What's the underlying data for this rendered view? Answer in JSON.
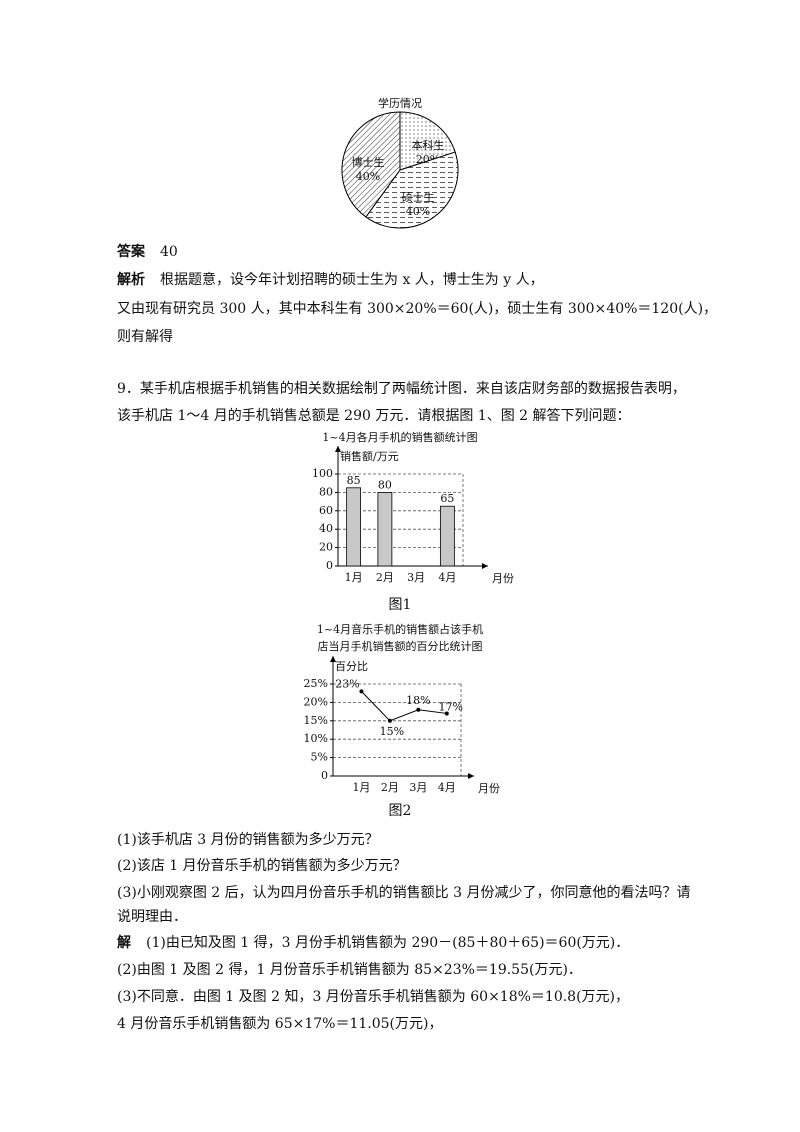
{
  "pie_chart": {
    "type": "pie",
    "title": "学历情况",
    "categories": [
      "本科生",
      "硕士生",
      "博士生"
    ],
    "values": [
      20,
      40,
      40
    ],
    "value_labels": [
      "20%",
      "40%",
      "40%"
    ]
  },
  "answer": {
    "label": "答案",
    "text": "40"
  },
  "analysis": {
    "label": "解析",
    "lines": [
      "根据题意，设今年计划招聘的硕士生为 x 人，博士生为 y 人，",
      "又由现有研究员 300 人，其中本科生有 300×20%＝60(人)，硕士生有 300×40%＝120(人)，",
      "则有解得"
    ]
  },
  "question": {
    "lines": [
      "9．某手机店根据手机销售的相关数据绘制了两幅统计图．来自该店财务部的数据报告表明，",
      "该手机店  1～4  月的手机销售总额是 290 万元．请根据图 1、图 2 解答下列问题："
    ]
  },
  "bar_chart": {
    "type": "bar",
    "title": "1~4月各月手机的销售额统计图",
    "y_label": "销售额/万元",
    "x_label": "月份",
    "categories": [
      "1月",
      "2月",
      "3月",
      "4月"
    ],
    "values": [
      85,
      80,
      null,
      65
    ],
    "color": "#c8c8c8",
    "ylim": [
      0,
      100
    ],
    "yticks": [
      0,
      20,
      40,
      60,
      80,
      100
    ],
    "grid": true,
    "caption": "图1"
  },
  "line_chart": {
    "type": "line",
    "title": [
      "1~4月音乐手机的销售额占该手机",
      "店当月手机销售额的百分比统计图"
    ],
    "y_label": "百分比",
    "x_label": "月份",
    "categories": [
      "1月",
      "2月",
      "3月",
      "4月"
    ],
    "values": [
      23,
      15,
      18,
      17
    ],
    "value_labels": [
      "23%",
      "15%",
      "18%",
      "17%"
    ],
    "color": "#000000",
    "ylim": [
      0,
      25
    ],
    "yticks": [
      0,
      {
        "value": 5,
        "label": "5%"
      },
      {
        "value": 10,
        "label": "10%"
      },
      {
        "value": 15,
        "label": "15%"
      },
      {
        "value": 20,
        "label": "20%"
      },
      {
        "value": 25,
        "label": "25%"
      }
    ],
    "grid": true,
    "caption": "图2"
  },
  "sub_questions": [
    "(1)该手机店 3 月份的销售额为多少万元？",
    "(2)该店 1 月份音乐手机的销售额为多少万元？",
    "(3)小刚观察图 2 后，认为四月份音乐手机的销售额比 3 月份减少了，你同意他的看法吗？请",
    "说明理由．"
  ],
  "solution": {
    "label": "解",
    "lines": [
      "(1)由已知及图 1 得，3 月份手机销售额为 290－(85＋80＋65)＝60(万元)．",
      "(2)由图 1 及图 2 得，1 月份音乐手机销售额为 85×23%＝19.55(万元)．",
      "(3)不同意．由图 1 及图 2 知，3 月份音乐手机销售额为 60×18%＝10.8(万元)，",
      "4 月份音乐手机销售额为 65×17%＝11.05(万元)，"
    ]
  }
}
